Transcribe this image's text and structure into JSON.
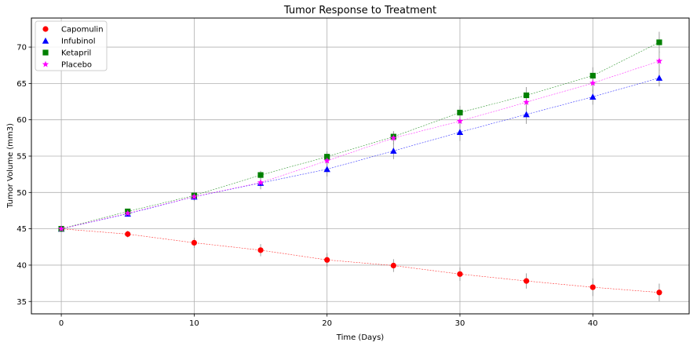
{
  "chart_data": {
    "type": "scatter",
    "title": "Tumor Response to Treatment",
    "xlabel": "Time (Days)",
    "ylabel": "Tumor Volume (mm3)",
    "xlim": [
      -2.25,
      47.25
    ],
    "ylim": [
      33.3,
      74.0
    ],
    "xticks": [
      0,
      10,
      20,
      30,
      40
    ],
    "yticks": [
      35,
      40,
      45,
      50,
      55,
      60,
      65,
      70
    ],
    "grid": true,
    "legend_position": "top-left",
    "x": [
      0,
      5,
      10,
      15,
      20,
      25,
      30,
      35,
      40,
      45
    ],
    "series": [
      {
        "name": "Capomulin",
        "color": "#ff0000",
        "marker": "circle",
        "values": [
          45.0,
          44.27,
          43.08,
          42.06,
          40.72,
          39.94,
          38.77,
          37.82,
          36.96,
          36.24
        ],
        "errors": [
          0.0,
          0.45,
          0.7,
          0.84,
          0.91,
          0.88,
          0.93,
          1.05,
          1.22,
          1.22
        ]
      },
      {
        "name": "Infubinol",
        "color": "#0000ff",
        "marker": "triangle",
        "values": [
          45.0,
          47.06,
          49.4,
          51.3,
          53.2,
          55.72,
          58.3,
          60.74,
          63.16,
          65.76
        ],
        "errors": [
          0.0,
          0.24,
          0.58,
          0.86,
          1.0,
          1.14,
          1.22,
          1.3,
          1.09,
          1.16
        ]
      },
      {
        "name": "Ketapril",
        "color": "#008000",
        "marker": "square",
        "values": [
          45.0,
          47.39,
          49.58,
          52.4,
          54.92,
          57.68,
          60.99,
          63.37,
          66.07,
          70.66
        ],
        "errors": [
          0.0,
          0.26,
          0.36,
          0.58,
          0.73,
          0.76,
          0.93,
          1.13,
          1.16,
          1.45
        ]
      },
      {
        "name": "Placebo",
        "color": "#ff00ff",
        "marker": "star",
        "values": [
          45.0,
          47.13,
          49.42,
          51.36,
          54.36,
          57.48,
          59.81,
          62.42,
          65.05,
          68.08
        ],
        "errors": [
          0.0,
          0.22,
          0.4,
          0.61,
          0.84,
          0.88,
          0.93,
          1.13,
          1.19,
          1.35
        ]
      }
    ]
  }
}
